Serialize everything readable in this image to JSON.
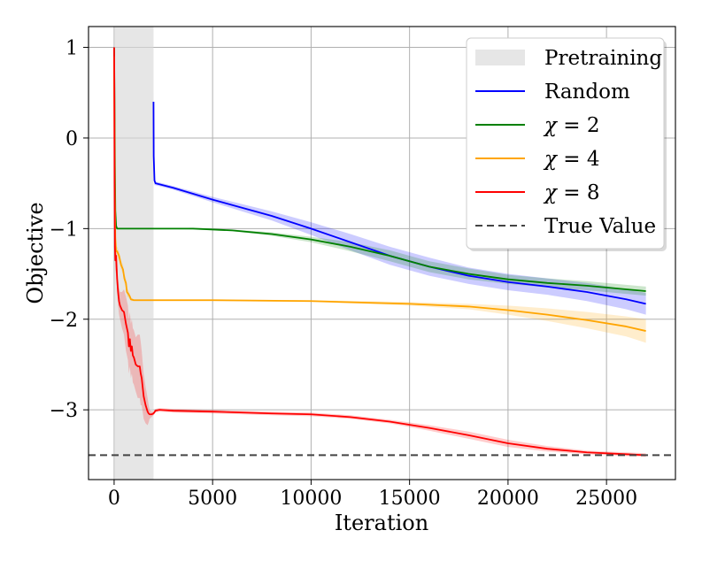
{
  "chart_data": {
    "type": "line",
    "title": "",
    "xlabel": "Iteration",
    "ylabel": "Objective",
    "xlim": [
      -1300,
      28500
    ],
    "ylim": [
      -3.77,
      1.23
    ],
    "xticks": [
      0,
      5000,
      10000,
      15000,
      20000,
      25000
    ],
    "xtick_labels": [
      "0",
      "5000",
      "10000",
      "15000",
      "20000",
      "25000"
    ],
    "yticks": [
      1,
      0,
      -1,
      -2,
      -3
    ],
    "ytick_labels": [
      "1",
      "0",
      "−1",
      "−2",
      "−3"
    ],
    "grid": true,
    "legend_position": "upper-right",
    "pretraining": {
      "label": "Pretraining",
      "x_start": 0,
      "x_end": 2000,
      "color": "#d9d9d9"
    },
    "true_value": {
      "label": "True Value",
      "y": -3.5,
      "color": "#444444",
      "style": "dashed"
    },
    "series": [
      {
        "name": "Random",
        "label_parts": [
          "Random"
        ],
        "color": "#0000ff",
        "x": [
          2000,
          2010,
          2050,
          2100,
          3000,
          5000,
          8000,
          10000,
          12000,
          14000,
          16000,
          18000,
          20000,
          22000,
          24000,
          26000,
          27000
        ],
        "y": [
          0.4,
          -0.2,
          -0.47,
          -0.5,
          -0.55,
          -0.68,
          -0.86,
          -1.0,
          -1.15,
          -1.3,
          -1.42,
          -1.52,
          -1.59,
          -1.64,
          -1.7,
          -1.78,
          -1.83
        ],
        "band": [
          0.15,
          0.1,
          0.05,
          0.02,
          0.02,
          0.03,
          0.05,
          0.07,
          0.09,
          0.1,
          0.1,
          0.09,
          0.09,
          0.09,
          0.1,
          0.11,
          0.12
        ]
      },
      {
        "name": "χ = 2",
        "label_parts": [
          "χ",
          " = 2"
        ],
        "color": "#008000",
        "x": [
          0,
          20,
          40,
          60,
          100,
          150,
          200,
          2000,
          4000,
          6000,
          8000,
          10000,
          12000,
          14000,
          16000,
          18000,
          20000,
          22000,
          24000,
          26000,
          27000
        ],
        "y": [
          1.0,
          0.4,
          -0.3,
          -0.8,
          -0.97,
          -1.0,
          -1.0,
          -1.0,
          -1.0,
          -1.02,
          -1.06,
          -1.12,
          -1.2,
          -1.3,
          -1.42,
          -1.5,
          -1.56,
          -1.6,
          -1.63,
          -1.67,
          -1.69
        ],
        "band": [
          0,
          0,
          0,
          0,
          0,
          0,
          0,
          0,
          0.01,
          0.01,
          0.02,
          0.03,
          0.05,
          0.06,
          0.06,
          0.06,
          0.05,
          0.05,
          0.05,
          0.05,
          0.05
        ]
      },
      {
        "name": "χ = 4",
        "label_parts": [
          "χ",
          " = 4"
        ],
        "color": "#ffa500",
        "x": [
          0,
          30,
          60,
          100,
          150,
          250,
          350,
          450,
          520,
          600,
          650,
          720,
          800,
          850,
          1000,
          1500,
          2000,
          5000,
          10000,
          15000,
          18000,
          20000,
          22000,
          24000,
          26000,
          27000
        ],
        "y": [
          0.9,
          -0.5,
          -1.1,
          -1.25,
          -1.25,
          -1.3,
          -1.4,
          -1.45,
          -1.55,
          -1.6,
          -1.7,
          -1.72,
          -1.75,
          -1.78,
          -1.79,
          -1.79,
          -1.79,
          -1.79,
          -1.8,
          -1.83,
          -1.86,
          -1.9,
          -1.95,
          -2.01,
          -2.08,
          -2.13
        ],
        "band": [
          0,
          0,
          0.05,
          0.05,
          0.05,
          0.05,
          0.05,
          0.05,
          0.05,
          0.05,
          0.05,
          0.04,
          0.03,
          0.02,
          0.01,
          0.01,
          0.01,
          0.01,
          0.01,
          0.02,
          0.03,
          0.05,
          0.07,
          0.09,
          0.11,
          0.13
        ]
      },
      {
        "name": "χ = 8",
        "label_parts": [
          "χ",
          " = 8"
        ],
        "color": "#ff0000",
        "x": [
          0,
          10,
          20,
          40,
          60,
          100,
          150,
          200,
          250,
          300,
          400,
          500,
          600,
          700,
          750,
          800,
          850,
          900,
          950,
          1000,
          1100,
          1200,
          1300,
          1350,
          1400,
          1500,
          1600,
          1700,
          1750,
          1800,
          1900,
          2000,
          2100,
          2300,
          3000,
          5000,
          8000,
          10000,
          12000,
          14000,
          16000,
          18000,
          20000,
          22000,
          24000,
          26000,
          27000
        ],
        "y": [
          1.0,
          0.6,
          -0.5,
          -1.2,
          -1.35,
          -1.3,
          -1.55,
          -1.7,
          -1.8,
          -1.85,
          -1.9,
          -1.92,
          -2.05,
          -2.15,
          -2.3,
          -2.22,
          -2.35,
          -2.3,
          -2.4,
          -2.42,
          -2.5,
          -2.52,
          -2.52,
          -2.6,
          -2.65,
          -2.85,
          -2.95,
          -3.02,
          -3.04,
          -3.05,
          -3.05,
          -3.04,
          -3.01,
          -3.0,
          -3.01,
          -3.02,
          -3.04,
          -3.05,
          -3.08,
          -3.13,
          -3.2,
          -3.28,
          -3.37,
          -3.43,
          -3.47,
          -3.49,
          -3.5
        ],
        "band": [
          0,
          0,
          0,
          0.1,
          0.15,
          0.15,
          0.15,
          0.15,
          0.15,
          0.15,
          0.2,
          0.25,
          0.3,
          0.3,
          0.3,
          0.3,
          0.3,
          0.3,
          0.3,
          0.3,
          0.3,
          0.35,
          0.35,
          0.35,
          0.3,
          0.25,
          0.2,
          0.15,
          0.1,
          0.05,
          0.03,
          0.02,
          0.02,
          0.02,
          0.02,
          0.02,
          0.02,
          0.02,
          0.02,
          0.02,
          0.03,
          0.04,
          0.04,
          0.03,
          0.02,
          0.02,
          0.02
        ]
      }
    ]
  }
}
